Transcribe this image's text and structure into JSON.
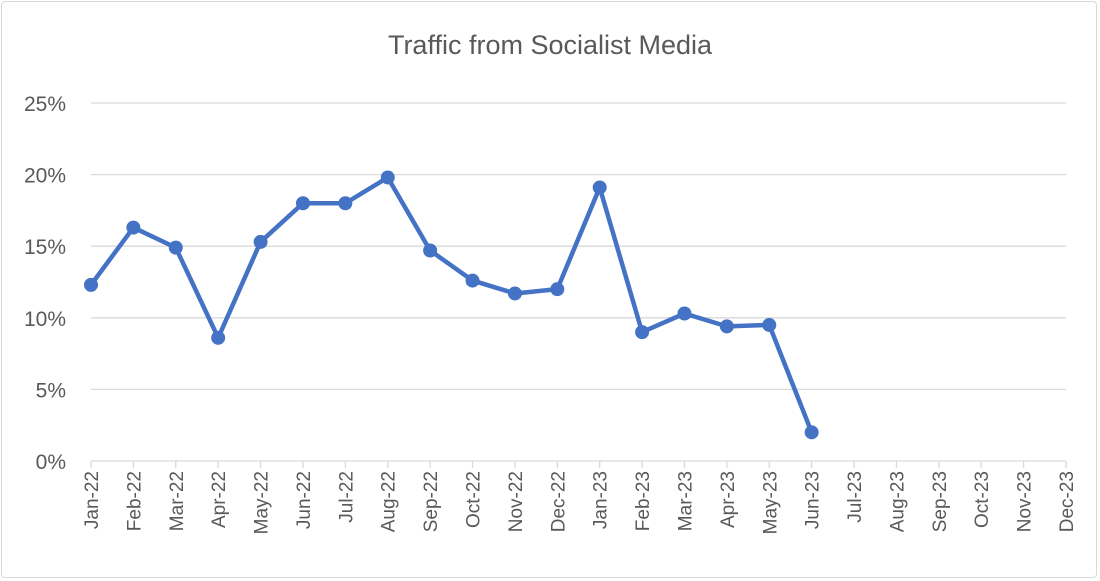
{
  "chart_data": {
    "type": "line",
    "title": "Traffic from Socialist Media",
    "xlabel": "",
    "ylabel": "",
    "categories": [
      "Jan-22",
      "Feb-22",
      "Mar-22",
      "Apr-22",
      "May-22",
      "Jun-22",
      "Jul-22",
      "Aug-22",
      "Sep-22",
      "Oct-22",
      "Nov-22",
      "Dec-22",
      "Jan-23",
      "Feb-23",
      "Mar-23",
      "Apr-23",
      "May-23",
      "Jun-23",
      "Jul-23",
      "Aug-23",
      "Sep-23",
      "Oct-23",
      "Nov-23",
      "Dec-23"
    ],
    "series": [
      {
        "values": [
          12.3,
          16.3,
          14.9,
          8.6,
          15.3,
          18.0,
          18.0,
          19.8,
          14.7,
          12.6,
          11.7,
          12.0,
          19.1,
          9.0,
          10.3,
          9.4,
          9.5,
          2.0,
          null,
          null,
          null,
          null,
          null,
          null
        ],
        "color": "#4472C4",
        "markers": true
      }
    ],
    "ylim": [
      0,
      25
    ],
    "yticks": [
      "0%",
      "5%",
      "10%",
      "15%",
      "20%",
      "25%"
    ],
    "ytick_values": [
      0,
      5,
      10,
      15,
      20,
      25
    ],
    "grid": true,
    "legend": "none",
    "gridline_color": "#d9d9d9"
  }
}
